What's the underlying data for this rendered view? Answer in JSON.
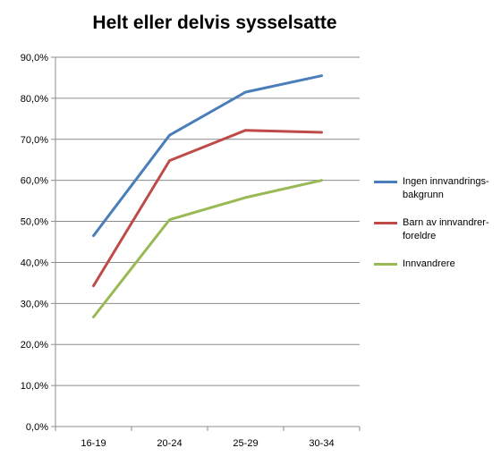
{
  "chart_data": {
    "type": "line",
    "title": "Helt eller delvis sysselsatte",
    "xlabel": "",
    "ylabel": "",
    "categories": [
      "16-19",
      "20-24",
      "25-29",
      "30-34"
    ],
    "ylim": [
      0,
      90
    ],
    "yticks": [
      "0,0%",
      "10,0%",
      "20,0%",
      "30,0%",
      "40,0%",
      "50,0%",
      "60,0%",
      "70,0%",
      "80,0%",
      "90,0%"
    ],
    "grid": true,
    "legend_position": "right",
    "series": [
      {
        "name": "Ingen innvandrings-\nbakgrunn",
        "color": "#4A7EBB",
        "values": [
          46.5,
          71.0,
          81.5,
          85.5
        ]
      },
      {
        "name": "Barn av innvandrer-\nforeldre",
        "color": "#BE4B48",
        "values": [
          34.3,
          64.8,
          72.2,
          71.7
        ]
      },
      {
        "name": "Innvandrere",
        "color": "#98B954",
        "values": [
          26.7,
          50.4,
          55.8,
          60.0
        ]
      }
    ]
  }
}
